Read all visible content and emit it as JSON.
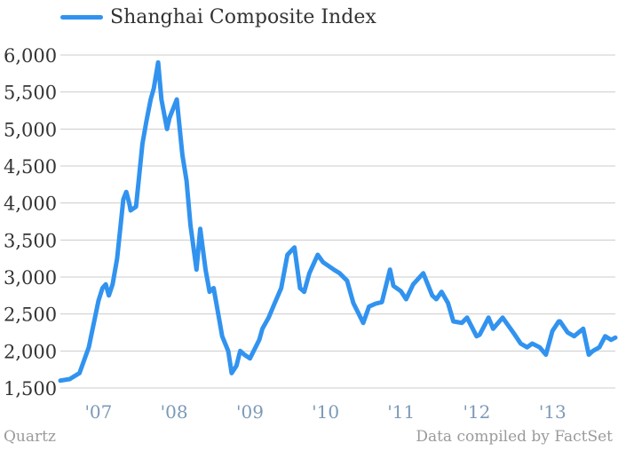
{
  "colors": {
    "series": "#3193ef",
    "grid": "#cccccc",
    "ytick": "#333333",
    "xtick": "#7c9ab7",
    "footer": "#9a9a9a"
  },
  "footer": {
    "brand": "Quartz",
    "source": "Data compiled by FactSet"
  },
  "chart_data": {
    "type": "line",
    "title": "",
    "xlabel": "",
    "ylabel": "",
    "ylim": [
      1500,
      6000
    ],
    "yticks": [
      1500,
      2000,
      2500,
      3000,
      3500,
      4000,
      4500,
      5000,
      5500,
      6000
    ],
    "ytick_labels": [
      "1,500",
      "2,000",
      "2,500",
      "3,000",
      "3,500",
      "4,000",
      "4,500",
      "5,000",
      "5,500",
      "6,000"
    ],
    "xlim": [
      "2006-07-01",
      "2013-10-31"
    ],
    "xticks": [
      "2007-01-01",
      "2008-01-01",
      "2009-01-01",
      "2010-01-01",
      "2011-01-01",
      "2012-01-01",
      "2013-01-01"
    ],
    "xtick_labels": [
      "'07",
      "'08",
      "'09",
      "'10",
      "'11",
      "'12",
      "'13"
    ],
    "grid": "horizontal",
    "legend": "top-left",
    "series": [
      {
        "name": "Shanghai Composite Index",
        "x": [
          "2006-07-01",
          "2006-08-15",
          "2006-10-01",
          "2006-11-15",
          "2007-01-01",
          "2007-01-20",
          "2007-02-05",
          "2007-02-20",
          "2007-03-10",
          "2007-04-01",
          "2007-05-01",
          "2007-05-15",
          "2007-05-29",
          "2007-06-05",
          "2007-07-01",
          "2007-08-01",
          "2007-08-20",
          "2007-09-10",
          "2007-09-25",
          "2007-10-16",
          "2007-11-01",
          "2007-11-28",
          "2007-12-10",
          "2008-01-14",
          "2008-02-10",
          "2008-03-01",
          "2008-03-20",
          "2008-04-18",
          "2008-05-06",
          "2008-06-01",
          "2008-06-20",
          "2008-07-10",
          "2008-08-01",
          "2008-08-20",
          "2008-09-18",
          "2008-10-05",
          "2008-10-28",
          "2008-11-15",
          "2008-12-05",
          "2009-01-01",
          "2009-02-15",
          "2009-03-02",
          "2009-04-01",
          "2009-05-01",
          "2009-06-01",
          "2009-07-01",
          "2009-08-04",
          "2009-08-31",
          "2009-09-20",
          "2009-10-15",
          "2009-11-24",
          "2009-12-20",
          "2010-01-15",
          "2010-02-10",
          "2010-03-10",
          "2010-04-15",
          "2010-05-15",
          "2010-07-02",
          "2010-07-30",
          "2010-08-31",
          "2010-09-30",
          "2010-11-08",
          "2010-11-25",
          "2010-12-31",
          "2011-01-25",
          "2011-02-28",
          "2011-04-18",
          "2011-05-31",
          "2011-06-20",
          "2011-07-15",
          "2011-08-15",
          "2011-09-10",
          "2011-10-21",
          "2011-11-15",
          "2011-12-31",
          "2012-01-15",
          "2012-02-27",
          "2012-03-20",
          "2012-05-05",
          "2012-06-30",
          "2012-07-31",
          "2012-08-31",
          "2012-09-25",
          "2012-10-31",
          "2012-11-30",
          "2012-12-31",
          "2013-01-31",
          "2013-02-06",
          "2013-03-15",
          "2013-04-15",
          "2013-05-29",
          "2013-06-25",
          "2013-07-15",
          "2013-08-15",
          "2013-09-12",
          "2013-10-10",
          "2013-10-31"
        ],
        "values": [
          1600,
          1620,
          1700,
          2050,
          2680,
          2850,
          2900,
          2750,
          2900,
          3250,
          4050,
          4150,
          4000,
          3900,
          3950,
          4800,
          5100,
          5400,
          5550,
          5900,
          5400,
          5000,
          5150,
          5400,
          4650,
          4300,
          3700,
          3100,
          3650,
          3100,
          2800,
          2850,
          2500,
          2200,
          2000,
          1700,
          1800,
          2000,
          1950,
          1900,
          2150,
          2300,
          2450,
          2650,
          2850,
          3300,
          3400,
          2850,
          2800,
          3050,
          3300,
          3200,
          3150,
          3100,
          3050,
          2950,
          2650,
          2380,
          2600,
          2640,
          2660,
          3100,
          2880,
          2808,
          2700,
          2900,
          3050,
          2750,
          2700,
          2800,
          2650,
          2400,
          2380,
          2450,
          2200,
          2220,
          2450,
          2300,
          2450,
          2230,
          2100,
          2050,
          2100,
          2050,
          1950,
          2269,
          2400,
          2400,
          2250,
          2200,
          2300,
          1950,
          2000,
          2050,
          2200,
          2150,
          2180
        ]
      }
    ]
  }
}
